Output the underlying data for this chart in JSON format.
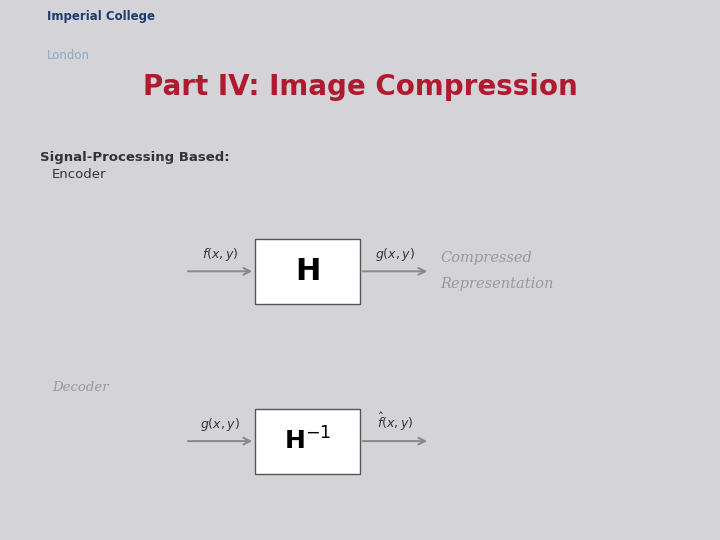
{
  "bg_color": "#d4d4d8",
  "header_top_color": "#d4d4d8",
  "title_band_color": "#c8c8cc",
  "content_bg": "#f5f5f7",
  "title_text": "Part IV: Image Compression",
  "title_color": "#b0192e",
  "title_fontsize": 20,
  "ic_text1": "Imperial College",
  "ic_text2": "London",
  "ic_color1": "#1a3a6b",
  "ic_color2": "#8aaabf",
  "label_spb": "Signal-Processing Based:",
  "label_encoder": "Encoder",
  "label_decoder": "Decoder",
  "label_cr1": "Compressed",
  "label_cr2": "Representation",
  "box1_label": "H",
  "arrow_color": "#888888",
  "box_color": "#ffffff",
  "box_edge": "#555555",
  "text_gray": "#999999",
  "text_dark": "#333333",
  "divider_color": "#aaaaaa"
}
